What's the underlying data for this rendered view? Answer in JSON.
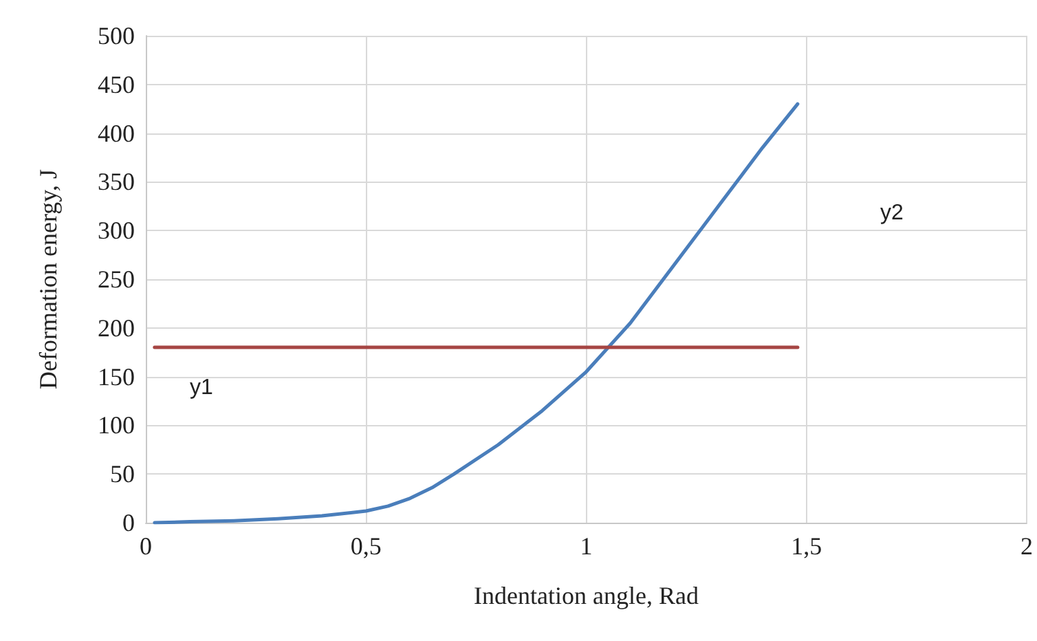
{
  "chart_data": {
    "type": "line",
    "xlabel": "Indentation angle, Rad",
    "ylabel": "Deformation energy, J",
    "xlim": [
      0,
      2
    ],
    "xticks": [
      0,
      {
        "value": 0.5,
        "label": "0,5"
      },
      1,
      {
        "value": 1.5,
        "label": "1,5"
      },
      2
    ],
    "ylim": [
      0,
      500
    ],
    "yticks": [
      0,
      50,
      100,
      150,
      200,
      250,
      300,
      350,
      400,
      450,
      500
    ],
    "grid": true,
    "marker": "none",
    "line_style": "solid",
    "series": [
      {
        "color": "#4a7ebb",
        "x": [
          0.02,
          0.1,
          0.2,
          0.3,
          0.4,
          0.5,
          0.55,
          0.6,
          0.65,
          0.7,
          0.8,
          0.9,
          1.0,
          1.05,
          1.1,
          1.2,
          1.3,
          1.4,
          1.48
        ],
        "values": [
          0,
          1,
          2,
          4,
          7,
          12,
          17,
          25,
          36,
          50,
          80,
          115,
          155,
          180,
          205,
          265,
          325,
          385,
          430
        ]
      },
      {
        "color": "#a64543",
        "x": [
          0.02,
          1.48
        ],
        "values": [
          180,
          180
        ]
      }
    ],
    "annotations": [
      "y1",
      "y2"
    ]
  }
}
